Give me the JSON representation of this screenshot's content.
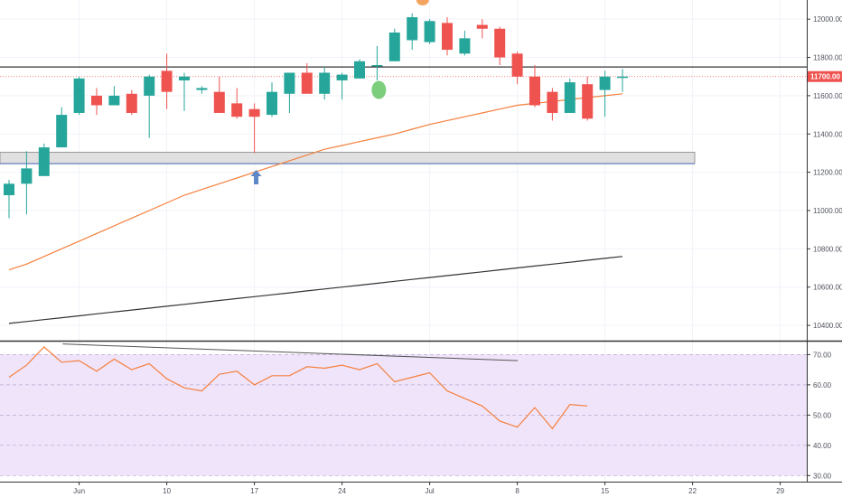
{
  "chart_data": [
    {
      "type": "candlestick",
      "title": "",
      "ylim": [
        10320,
        12100
      ],
      "y_ticks": [
        10400,
        10600,
        10800,
        11000,
        11200,
        11400,
        11600,
        11800,
        12000
      ],
      "y_tick_labels": [
        "10400.00",
        "10600.00",
        "10800.00",
        "11000.00",
        "11200.00",
        "11400.00",
        "11600.00",
        "11800.00",
        "12000.00"
      ],
      "x_ticks": [
        {
          "label": "Jun",
          "index": 4
        },
        {
          "label": "10",
          "index": 9
        },
        {
          "label": "17",
          "index": 14
        },
        {
          "label": "24",
          "index": 19
        },
        {
          "label": "Jul",
          "index": 24
        },
        {
          "label": "8",
          "index": 29
        },
        {
          "label": "15",
          "index": 34
        },
        {
          "label": "22",
          "index": 39
        },
        {
          "label": "29",
          "index": 44
        }
      ],
      "last_price_label": "11700.00",
      "colors": {
        "up": "#26a69a",
        "down": "#ef5350",
        "ma_fast": "#f57f3c",
        "ma_slow": "#333333",
        "price_line": "#ef5350",
        "level_line": "#333333",
        "zone_fill": "#e0e0e0",
        "zone_border": "#4a6ab8",
        "arrow": "#5d87c6",
        "marker_top": "#f4a460",
        "marker_green": "#7ccd7c"
      },
      "candles": [
        {
          "o": 11080,
          "h": 11160,
          "l": 10960,
          "c": 11140
        },
        {
          "o": 11140,
          "h": 11310,
          "l": 10980,
          "c": 11220
        },
        {
          "o": 11180,
          "h": 11350,
          "l": 11180,
          "c": 11330
        },
        {
          "o": 11330,
          "h": 11540,
          "l": 11330,
          "c": 11500
        },
        {
          "o": 11510,
          "h": 11700,
          "l": 11500,
          "c": 11690
        },
        {
          "o": 11600,
          "h": 11640,
          "l": 11500,
          "c": 11550
        },
        {
          "o": 11550,
          "h": 11650,
          "l": 11550,
          "c": 11600
        },
        {
          "o": 11610,
          "h": 11630,
          "l": 11500,
          "c": 11510
        },
        {
          "o": 11600,
          "h": 11710,
          "l": 11380,
          "c": 11700
        },
        {
          "o": 11730,
          "h": 11820,
          "l": 11530,
          "c": 11620
        },
        {
          "o": 11680,
          "h": 11720,
          "l": 11520,
          "c": 11700
        },
        {
          "o": 11630,
          "h": 11650,
          "l": 11610,
          "c": 11640
        },
        {
          "o": 11620,
          "h": 11700,
          "l": 11510,
          "c": 11510
        },
        {
          "o": 11560,
          "h": 11640,
          "l": 11480,
          "c": 11490
        },
        {
          "o": 11530,
          "h": 11560,
          "l": 11300,
          "c": 11490
        },
        {
          "o": 11500,
          "h": 11670,
          "l": 11490,
          "c": 11620
        },
        {
          "o": 11610,
          "h": 11720,
          "l": 11510,
          "c": 11720
        },
        {
          "o": 11720,
          "h": 11770,
          "l": 11620,
          "c": 11610
        },
        {
          "o": 11610,
          "h": 11750,
          "l": 11580,
          "c": 11720
        },
        {
          "o": 11680,
          "h": 11720,
          "l": 11580,
          "c": 11710
        },
        {
          "o": 11690,
          "h": 11790,
          "l": 11690,
          "c": 11780
        },
        {
          "o": 11760,
          "h": 11860,
          "l": 11680,
          "c": 11760
        },
        {
          "o": 11780,
          "h": 11950,
          "l": 11780,
          "c": 11930
        },
        {
          "o": 11890,
          "h": 12030,
          "l": 11840,
          "c": 12010
        },
        {
          "o": 11880,
          "h": 12000,
          "l": 11870,
          "c": 11990
        },
        {
          "o": 11980,
          "h": 12010,
          "l": 11810,
          "c": 11840
        },
        {
          "o": 11820,
          "h": 11940,
          "l": 11810,
          "c": 11900
        },
        {
          "o": 11970,
          "h": 12000,
          "l": 11900,
          "c": 11950
        },
        {
          "o": 11950,
          "h": 11960,
          "l": 11760,
          "c": 11800
        },
        {
          "o": 11820,
          "h": 11830,
          "l": 11660,
          "c": 11700
        },
        {
          "o": 11700,
          "h": 11760,
          "l": 11540,
          "c": 11550
        },
        {
          "o": 11620,
          "h": 11640,
          "l": 11470,
          "c": 11510
        },
        {
          "o": 11510,
          "h": 11690,
          "l": 11510,
          "c": 11670
        },
        {
          "o": 11660,
          "h": 11700,
          "l": 11470,
          "c": 11480
        },
        {
          "o": 11630,
          "h": 11730,
          "l": 11490,
          "c": 11700
        },
        {
          "o": 11700,
          "h": 11740,
          "l": 11620,
          "c": 11700
        }
      ],
      "ma_fast": [
        10690,
        10720,
        10760,
        10800,
        10840,
        10880,
        10920,
        10960,
        11000,
        11040,
        11080,
        11110,
        11140,
        11170,
        11200,
        11230,
        11260,
        11290,
        11320,
        11340,
        11360,
        11380,
        11400,
        11425,
        11450,
        11470,
        11490,
        11510,
        11530,
        11550,
        11560,
        11570,
        11580,
        11590,
        11600,
        11610
      ],
      "ma_slow": [
        10410,
        10420,
        10430,
        10440,
        10450,
        10460,
        10470,
        10480,
        10490,
        10500,
        10510,
        10520,
        10530,
        10540,
        10550,
        10560,
        10570,
        10580,
        10590,
        10600,
        10610,
        10620,
        10630,
        10640,
        10650,
        10660,
        10670,
        10680,
        10690,
        10700,
        10710,
        10720,
        10730,
        10740,
        10750,
        10760
      ],
      "resistance_level": 11750,
      "support_zone": [
        11245,
        11305
      ]
    },
    {
      "type": "line",
      "title": "",
      "ylim": [
        28,
        74
      ],
      "y_ticks": [
        30,
        40,
        50,
        60,
        70
      ],
      "y_tick_labels": [
        "30.00",
        "40.00",
        "50.00",
        "60.00",
        "70.00"
      ],
      "band": [
        30,
        70
      ],
      "colors": {
        "line": "#f57f3c",
        "band_fill": "#f0e4fb",
        "trend": "#555555"
      },
      "values": [
        62.5,
        66.5,
        72.5,
        67.5,
        68,
        64.5,
        68.5,
        65,
        67,
        62,
        59,
        58,
        63.5,
        64.5,
        60,
        63,
        63,
        66,
        65.5,
        66.5,
        65,
        67,
        61,
        62.5,
        64,
        58,
        53,
        48,
        46,
        52.5,
        45.5,
        53.5,
        53
      ],
      "x_indices": [
        0,
        1,
        2,
        3,
        4,
        5,
        6,
        7,
        8,
        9,
        10,
        11,
        12,
        13,
        14,
        15,
        16,
        17,
        18,
        19,
        20,
        21,
        22,
        23,
        24,
        25,
        27,
        28,
        29,
        30,
        31,
        32,
        33
      ],
      "trend_line": [
        [
          1,
          73.5
        ],
        [
          28,
          68
        ]
      ]
    }
  ]
}
